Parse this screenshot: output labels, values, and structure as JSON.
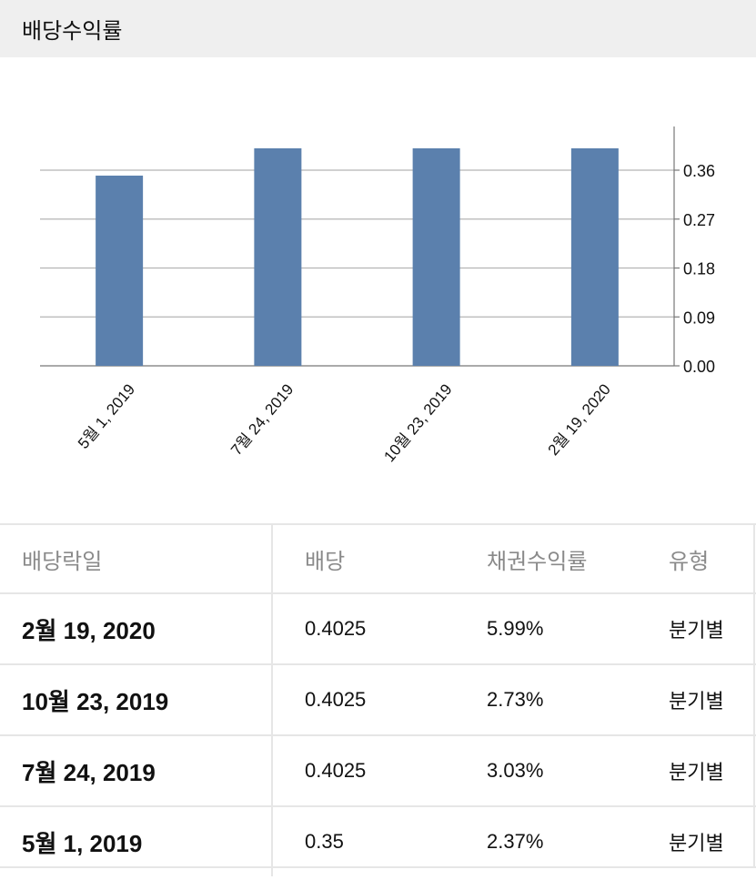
{
  "header": {
    "title": "배당수익률"
  },
  "chart_data": {
    "type": "bar",
    "categories": [
      "5월 1, 2019",
      "7월 24, 2019",
      "10월 23, 2019",
      "2월 19, 2020"
    ],
    "values": [
      0.35,
      0.4025,
      0.4025,
      0.4025
    ],
    "yticks": [
      "0.00",
      "0.09",
      "0.18",
      "0.27",
      "0.36"
    ],
    "ylim": [
      0,
      0.36
    ],
    "bar_color": "#5b80ad",
    "grid": true,
    "yaxis_position": "right"
  },
  "table": {
    "headers": {
      "date": "배당락일",
      "dividend": "배당",
      "yield": "채권수익률",
      "type": "유형"
    },
    "rows": [
      {
        "date": "2월 19, 2020",
        "dividend": "0.4025",
        "yield": "5.99%",
        "type": "분기별"
      },
      {
        "date": "10월 23, 2019",
        "dividend": "0.4025",
        "yield": "2.73%",
        "type": "분기별"
      },
      {
        "date": "7월 24, 2019",
        "dividend": "0.4025",
        "yield": "3.03%",
        "type": "분기별"
      },
      {
        "date": "5월 1, 2019",
        "dividend": "0.35",
        "yield": "2.37%",
        "type": "분기별"
      }
    ]
  }
}
